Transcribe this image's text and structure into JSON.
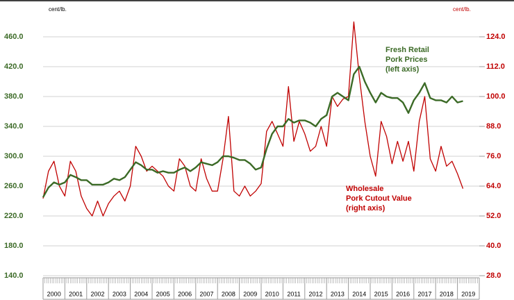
{
  "chart_data": {
    "type": "line",
    "y_unit_label": "cent/lb.",
    "y2_unit_label": "cent/lb.",
    "xlim": [
      2000,
      2020
    ],
    "xticks": [
      {
        "value": 2000,
        "label": "2000"
      },
      {
        "value": 2001,
        "label": "2001"
      },
      {
        "value": 2002,
        "label": "2002"
      },
      {
        "value": 2003,
        "label": "2003"
      },
      {
        "value": 2004,
        "label": "2004"
      },
      {
        "value": 2005,
        "label": "2005"
      },
      {
        "value": 2006,
        "label": "2006"
      },
      {
        "value": 2007,
        "label": "2007"
      },
      {
        "value": 2008,
        "label": "2008"
      },
      {
        "value": 2009,
        "label": "2009"
      },
      {
        "value": 2010,
        "label": "2010"
      },
      {
        "value": 2011,
        "label": "2011"
      },
      {
        "value": 2012,
        "label": "2012"
      },
      {
        "value": 2013,
        "label": "2013"
      },
      {
        "value": 2014,
        "label": "2014"
      },
      {
        "value": 2015,
        "label": "2015"
      },
      {
        "value": 2016,
        "label": "2016"
      },
      {
        "value": 2017,
        "label": "2017"
      },
      {
        "value": 2018,
        "label": "2018"
      },
      {
        "value": 2019,
        "label": "2019"
      }
    ],
    "ylim": [
      140,
      460
    ],
    "yticks": [
      {
        "value": 140,
        "label": "140.0"
      },
      {
        "value": 180,
        "label": "180.0"
      },
      {
        "value": 220,
        "label": "220.0"
      },
      {
        "value": 260,
        "label": "260.0"
      },
      {
        "value": 300,
        "label": "300.0"
      },
      {
        "value": 340,
        "label": "340.0"
      },
      {
        "value": 380,
        "label": "380.0"
      },
      {
        "value": 420,
        "label": "420.0"
      },
      {
        "value": 460,
        "label": "460.0"
      }
    ],
    "y2lim": [
      28,
      124
    ],
    "y2ticks": [
      {
        "value": 28,
        "label": "28.0"
      },
      {
        "value": 40,
        "label": "40.0"
      },
      {
        "value": 52,
        "label": "52.0"
      },
      {
        "value": 64,
        "label": "64.0"
      },
      {
        "value": 76,
        "label": "76.0"
      },
      {
        "value": 88,
        "label": "88.0"
      },
      {
        "value": 100,
        "label": "100.0"
      },
      {
        "value": 112,
        "label": "112.0"
      },
      {
        "value": 124,
        "label": "124.0"
      }
    ],
    "grid": true,
    "x": [
      2000,
      2000.25,
      2000.5,
      2000.75,
      2001,
      2001.25,
      2001.5,
      2001.75,
      2002,
      2002.25,
      2002.5,
      2002.75,
      2003,
      2003.25,
      2003.5,
      2003.75,
      2004,
      2004.25,
      2004.5,
      2004.75,
      2005,
      2005.25,
      2005.5,
      2005.75,
      2006,
      2006.25,
      2006.5,
      2006.75,
      2007,
      2007.25,
      2007.5,
      2007.75,
      2008,
      2008.25,
      2008.5,
      2008.75,
      2009,
      2009.25,
      2009.5,
      2009.75,
      2010,
      2010.25,
      2010.5,
      2010.75,
      2011,
      2011.25,
      2011.5,
      2011.75,
      2012,
      2012.25,
      2012.5,
      2012.75,
      2013,
      2013.25,
      2013.5,
      2013.75,
      2014,
      2014.25,
      2014.5,
      2014.75,
      2015,
      2015.25,
      2015.5,
      2015.75,
      2016,
      2016.25,
      2016.5,
      2016.75,
      2017,
      2017.25,
      2017.5,
      2017.75,
      2018,
      2018.25,
      2018.5,
      2018.75,
      2019,
      2019.25
    ],
    "series": [
      {
        "name": "Fresh Retail Pork Prices",
        "color": "#3b6a26",
        "axis": "y",
        "values": [
          245,
          258,
          265,
          262,
          265,
          275,
          272,
          268,
          268,
          262,
          262,
          262,
          265,
          270,
          268,
          272,
          282,
          292,
          288,
          282,
          282,
          278,
          280,
          278,
          278,
          282,
          285,
          280,
          285,
          292,
          290,
          288,
          292,
          300,
          300,
          298,
          295,
          295,
          290,
          282,
          285,
          310,
          330,
          340,
          340,
          350,
          345,
          348,
          348,
          345,
          340,
          350,
          355,
          380,
          385,
          380,
          375,
          410,
          420,
          400,
          385,
          372,
          385,
          380,
          378,
          378,
          372,
          358,
          375,
          385,
          398,
          378,
          375,
          375,
          372,
          380,
          372,
          374
        ]
      },
      {
        "name": "Wholesale Pork Cutout Value",
        "color": "#c00000",
        "axis": "y2",
        "values": [
          59,
          70,
          74,
          64,
          60,
          74,
          70,
          60,
          55,
          52,
          58,
          52,
          57,
          60,
          62,
          58,
          64,
          80,
          76,
          70,
          72,
          70,
          68,
          64,
          62,
          75,
          72,
          64,
          62,
          75,
          67,
          62,
          62,
          75,
          92,
          62,
          60,
          64,
          60,
          62,
          65,
          86,
          90,
          85,
          80,
          104,
          82,
          90,
          85,
          78,
          80,
          88,
          80,
          100,
          96,
          99,
          100,
          130,
          108,
          90,
          76,
          68,
          90,
          84,
          73,
          82,
          74,
          82,
          70,
          90,
          100,
          75,
          70,
          80,
          72,
          74,
          69,
          63
        ]
      }
    ],
    "annotations": [
      {
        "lines": [
          "Fresh Retail",
          "Pork Prices",
          "(left axis)"
        ],
        "color": "#3b6a26"
      },
      {
        "lines": [
          "Wholesale",
          "Pork Cutout Value",
          "(right axis)"
        ],
        "color": "#c00000"
      }
    ]
  }
}
